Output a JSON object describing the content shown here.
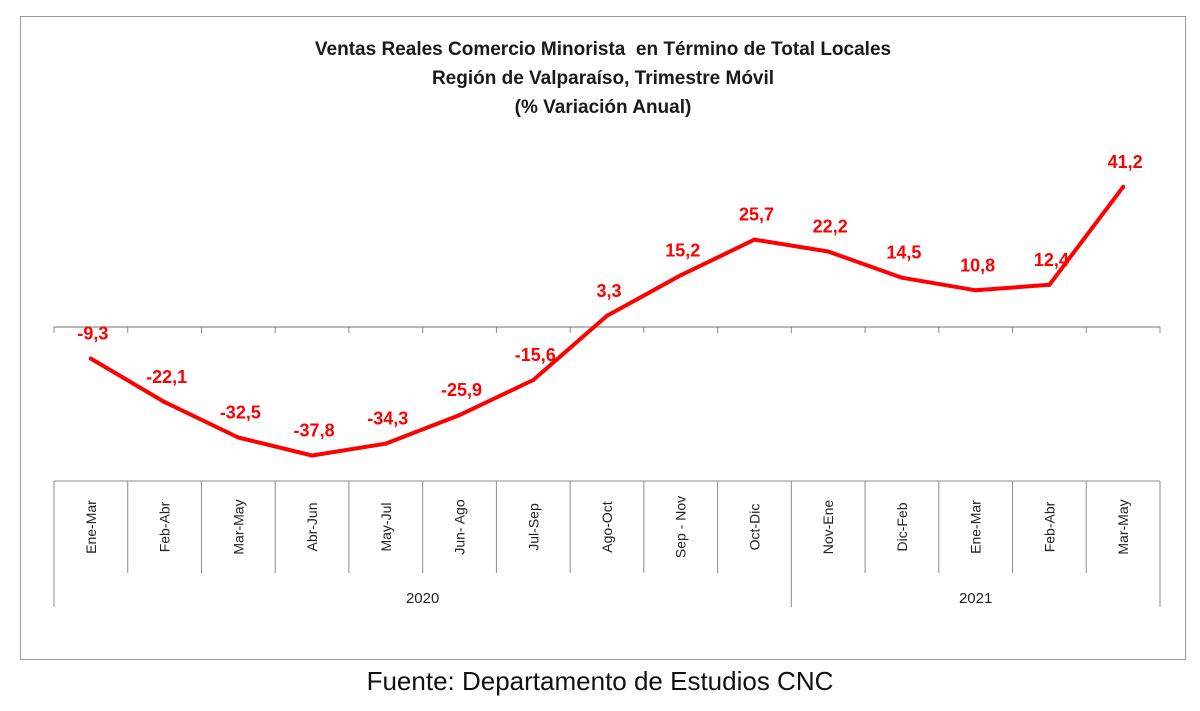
{
  "chart_data": {
    "type": "line",
    "title_lines": [
      "Ventas Reales Comercio Minorista  en Término de Total Locales",
      "Región de Valparaíso, Trimestre Móvil",
      "(% Variación Anual)"
    ],
    "categories": [
      "Ene-Mar",
      "Feb-Abr",
      "Mar-May",
      "Abr-Jun",
      "May-Jul",
      "Jun- Ago",
      "Jul-Sep",
      "Ago-Oct",
      "Sep - Nov",
      "Oct-Dic",
      "Nov-Ene",
      "Dic-Feb",
      "Ene-Mar",
      "Feb-Abr",
      "Mar-May"
    ],
    "values": [
      -9.3,
      -22.1,
      -32.5,
      -37.8,
      -34.3,
      -25.9,
      -15.6,
      3.3,
      15.2,
      25.7,
      22.2,
      14.5,
      10.8,
      12.4,
      41.2
    ],
    "value_labels": [
      "-9,3",
      "-22,1",
      "-32,5",
      "-37,8",
      "-34,3",
      "-25,9",
      "-15,6",
      "3,3",
      "15,2",
      "25,7",
      "22,2",
      "14,5",
      "10,8",
      "12,4",
      "41,2"
    ],
    "year_groups": [
      {
        "label": "2020",
        "count": 10
      },
      {
        "label": "2021",
        "count": 5
      }
    ],
    "ylim": [
      -45,
      45
    ],
    "line_color": "#ff0000",
    "label_color": "#ff0000",
    "grid": false,
    "legend": "none"
  },
  "source_note": "Fuente: Departamento de Estudios CNC"
}
